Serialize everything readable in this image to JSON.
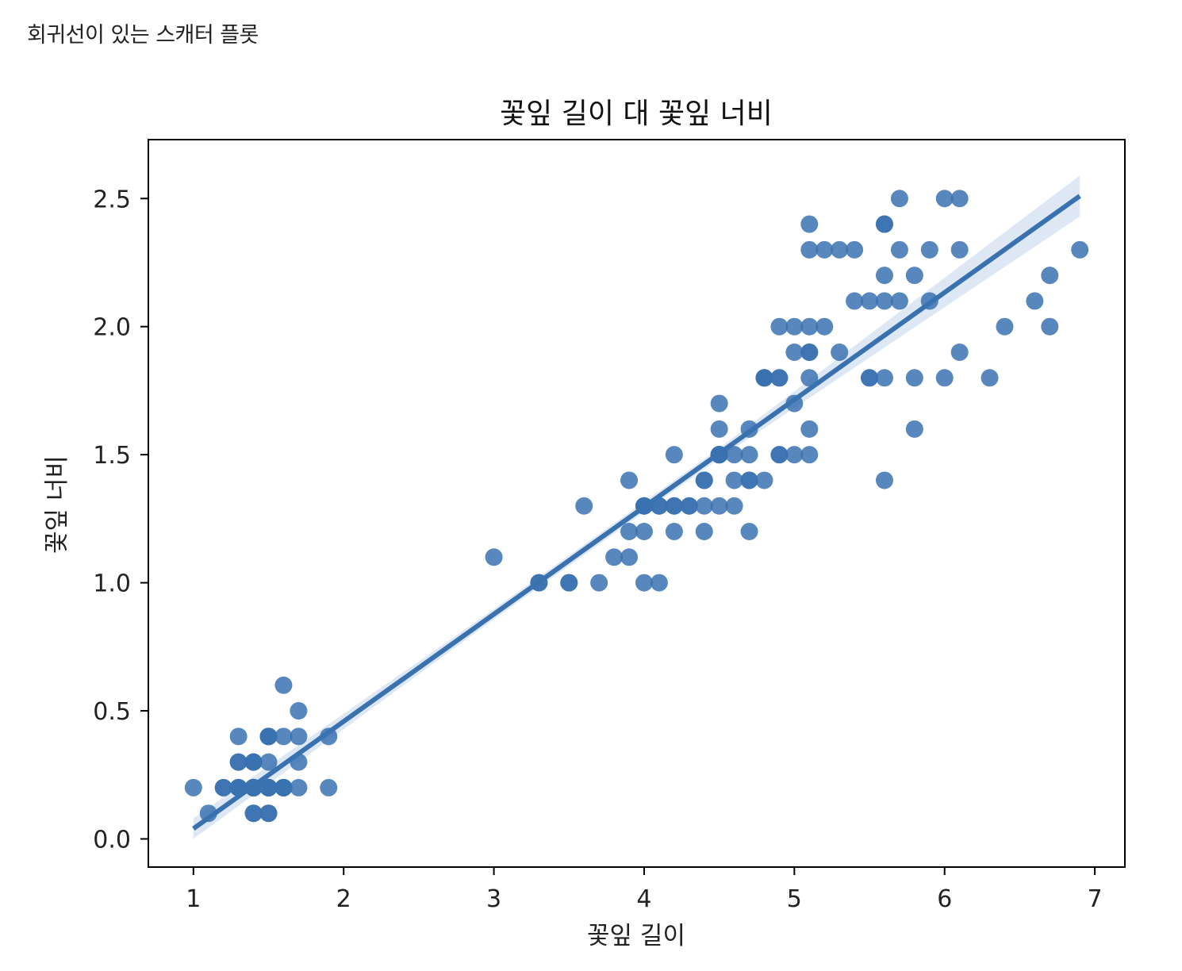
{
  "page": {
    "caption": "회귀선이 있는 스캐터 플롯"
  },
  "colors": {
    "points": "#3a72b0",
    "line": "#3a72b0",
    "band": "#c8d9ec",
    "axes": "#000000"
  },
  "chart_data": {
    "type": "scatter",
    "title": "꽃잎 길이 대 꽃잎 너비",
    "xlabel": "꽃잎 길이",
    "ylabel": "꽃잎 너비",
    "xlim": [
      0.7,
      7.2
    ],
    "ylim": [
      -0.11,
      2.73
    ],
    "xticks": [
      1,
      2,
      3,
      4,
      5,
      6,
      7
    ],
    "yticks": [
      0.0,
      0.5,
      1.0,
      1.5,
      2.0,
      2.5
    ],
    "ytick_labels": [
      "0.0",
      "0.5",
      "1.0",
      "1.5",
      "2.0",
      "2.5"
    ],
    "grid": false,
    "regression": {
      "x_range": [
        1.0,
        6.9
      ],
      "y_range": [
        0.04,
        2.51
      ],
      "ci_x": [
        1.0,
        3.0,
        4.5,
        6.9
      ],
      "ci_half_width": [
        0.04,
        0.02,
        0.02,
        0.08
      ]
    },
    "points": [
      [
        1.4,
        0.2
      ],
      [
        1.4,
        0.2
      ],
      [
        1.3,
        0.2
      ],
      [
        1.5,
        0.2
      ],
      [
        1.4,
        0.2
      ],
      [
        1.7,
        0.4
      ],
      [
        1.4,
        0.3
      ],
      [
        1.5,
        0.2
      ],
      [
        1.4,
        0.2
      ],
      [
        1.5,
        0.1
      ],
      [
        1.5,
        0.2
      ],
      [
        1.6,
        0.2
      ],
      [
        1.4,
        0.1
      ],
      [
        1.1,
        0.1
      ],
      [
        1.2,
        0.2
      ],
      [
        1.5,
        0.4
      ],
      [
        1.3,
        0.4
      ],
      [
        1.4,
        0.3
      ],
      [
        1.7,
        0.3
      ],
      [
        1.5,
        0.3
      ],
      [
        1.7,
        0.2
      ],
      [
        1.5,
        0.4
      ],
      [
        1.0,
        0.2
      ],
      [
        1.7,
        0.5
      ],
      [
        1.9,
        0.2
      ],
      [
        1.6,
        0.2
      ],
      [
        1.6,
        0.4
      ],
      [
        1.5,
        0.2
      ],
      [
        1.4,
        0.2
      ],
      [
        1.6,
        0.2
      ],
      [
        1.6,
        0.2
      ],
      [
        1.5,
        0.4
      ],
      [
        1.5,
        0.1
      ],
      [
        1.4,
        0.2
      ],
      [
        1.5,
        0.2
      ],
      [
        1.2,
        0.2
      ],
      [
        1.3,
        0.2
      ],
      [
        1.4,
        0.1
      ],
      [
        1.3,
        0.2
      ],
      [
        1.5,
        0.2
      ],
      [
        1.3,
        0.3
      ],
      [
        1.3,
        0.3
      ],
      [
        1.3,
        0.2
      ],
      [
        1.6,
        0.6
      ],
      [
        1.9,
        0.4
      ],
      [
        1.4,
        0.3
      ],
      [
        1.6,
        0.2
      ],
      [
        1.4,
        0.2
      ],
      [
        1.5,
        0.2
      ],
      [
        1.4,
        0.2
      ],
      [
        4.7,
        1.4
      ],
      [
        4.5,
        1.5
      ],
      [
        4.9,
        1.5
      ],
      [
        4.0,
        1.3
      ],
      [
        4.6,
        1.5
      ],
      [
        4.5,
        1.3
      ],
      [
        4.7,
        1.6
      ],
      [
        3.3,
        1.0
      ],
      [
        4.6,
        1.3
      ],
      [
        3.9,
        1.4
      ],
      [
        3.5,
        1.0
      ],
      [
        4.2,
        1.5
      ],
      [
        4.0,
        1.0
      ],
      [
        4.7,
        1.4
      ],
      [
        3.6,
        1.3
      ],
      [
        4.4,
        1.4
      ],
      [
        4.5,
        1.5
      ],
      [
        4.1,
        1.0
      ],
      [
        4.5,
        1.5
      ],
      [
        3.9,
        1.1
      ],
      [
        4.8,
        1.8
      ],
      [
        4.0,
        1.3
      ],
      [
        4.9,
        1.5
      ],
      [
        4.7,
        1.2
      ],
      [
        4.3,
        1.3
      ],
      [
        4.4,
        1.4
      ],
      [
        4.8,
        1.4
      ],
      [
        5.0,
        1.7
      ],
      [
        4.5,
        1.5
      ],
      [
        3.5,
        1.0
      ],
      [
        3.8,
        1.1
      ],
      [
        3.7,
        1.0
      ],
      [
        3.9,
        1.2
      ],
      [
        5.1,
        1.6
      ],
      [
        4.5,
        1.5
      ],
      [
        4.5,
        1.6
      ],
      [
        4.7,
        1.5
      ],
      [
        4.4,
        1.3
      ],
      [
        4.1,
        1.3
      ],
      [
        4.0,
        1.3
      ],
      [
        4.4,
        1.2
      ],
      [
        4.6,
        1.4
      ],
      [
        4.0,
        1.2
      ],
      [
        3.3,
        1.0
      ],
      [
        4.2,
        1.3
      ],
      [
        4.2,
        1.2
      ],
      [
        4.2,
        1.3
      ],
      [
        4.3,
        1.3
      ],
      [
        3.0,
        1.1
      ],
      [
        4.1,
        1.3
      ],
      [
        6.0,
        2.5
      ],
      [
        5.1,
        1.9
      ],
      [
        5.9,
        2.1
      ],
      [
        5.6,
        1.8
      ],
      [
        5.8,
        2.2
      ],
      [
        6.6,
        2.1
      ],
      [
        4.5,
        1.7
      ],
      [
        6.3,
        1.8
      ],
      [
        5.8,
        1.8
      ],
      [
        6.1,
        2.5
      ],
      [
        5.1,
        2.0
      ],
      [
        5.3,
        1.9
      ],
      [
        5.5,
        2.1
      ],
      [
        5.0,
        2.0
      ],
      [
        5.1,
        2.4
      ],
      [
        5.3,
        2.3
      ],
      [
        5.5,
        1.8
      ],
      [
        6.7,
        2.2
      ],
      [
        6.9,
        2.3
      ],
      [
        5.0,
        1.5
      ],
      [
        5.7,
        2.3
      ],
      [
        4.9,
        2.0
      ],
      [
        6.7,
        2.0
      ],
      [
        4.9,
        1.8
      ],
      [
        5.7,
        2.1
      ],
      [
        6.0,
        1.8
      ],
      [
        4.8,
        1.8
      ],
      [
        4.9,
        1.8
      ],
      [
        5.6,
        2.1
      ],
      [
        5.8,
        1.6
      ],
      [
        6.1,
        1.9
      ],
      [
        6.4,
        2.0
      ],
      [
        5.6,
        2.2
      ],
      [
        5.1,
        1.5
      ],
      [
        5.6,
        1.4
      ],
      [
        6.1,
        2.3
      ],
      [
        5.6,
        2.4
      ],
      [
        5.5,
        1.8
      ],
      [
        4.8,
        1.8
      ],
      [
        5.4,
        2.1
      ],
      [
        5.6,
        2.4
      ],
      [
        5.1,
        2.3
      ],
      [
        5.1,
        1.9
      ],
      [
        5.9,
        2.3
      ],
      [
        5.7,
        2.5
      ],
      [
        5.2,
        2.3
      ],
      [
        5.0,
        1.9
      ],
      [
        5.2,
        2.0
      ],
      [
        5.4,
        2.3
      ],
      [
        5.1,
        1.8
      ]
    ]
  }
}
